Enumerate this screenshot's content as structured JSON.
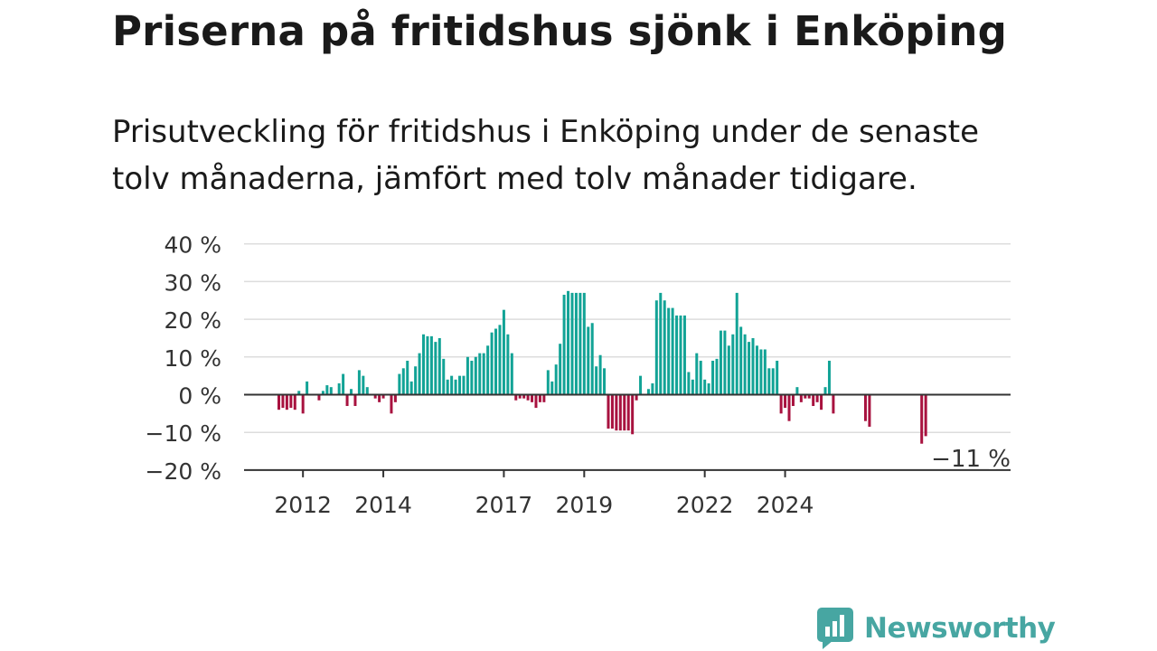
{
  "title": "Priserna på fritidshus sjönk i Enköping",
  "subtitle": "Prisutveckling för fritidshus i Enköping under de senaste tolv månaderna, jämfört med tolv månader tidigare.",
  "brand": {
    "name": "Newsworthy",
    "icon": "newsworthy-logo-icon",
    "color": "#47a6a2"
  },
  "colors": {
    "positive": "#12a396",
    "negative": "#a8123f",
    "grid": "#dddddd",
    "axis": "#333333"
  },
  "chart_data": {
    "type": "bar",
    "ylim": [
      -20,
      40
    ],
    "y_ticks": [
      {
        "value": 40,
        "label": "40 %"
      },
      {
        "value": 30,
        "label": "30 %"
      },
      {
        "value": 20,
        "label": "20 %"
      },
      {
        "value": 10,
        "label": "10 %"
      },
      {
        "value": 0,
        "label": "0 %"
      },
      {
        "value": -10,
        "label": "−10 %"
      },
      {
        "value": -20,
        "label": "−20 %"
      }
    ],
    "x_ticks": [
      "2012",
      "2014",
      "2017",
      "2019",
      "2022",
      "2024"
    ],
    "x_tick_index": [
      6,
      26,
      56,
      76,
      106,
      126
    ],
    "grid": true,
    "last_value_label": "−11 %",
    "values": [
      -4,
      -3.5,
      -4,
      -3.5,
      -4,
      1,
      -5,
      3.5,
      0,
      0,
      -1.5,
      1,
      2.5,
      2,
      0,
      3,
      5.5,
      -3,
      1.5,
      -3,
      6.5,
      5,
      2,
      0,
      -1,
      -2,
      -1,
      0,
      -5,
      -2,
      5.5,
      7,
      9,
      3.5,
      7.5,
      11,
      16,
      15.5,
      15.5,
      14,
      15,
      9.5,
      4,
      5,
      4,
      5,
      5,
      10,
      9,
      10,
      11,
      11,
      13,
      16.5,
      17.5,
      18.5,
      22.5,
      16,
      11,
      -1.5,
      -1,
      -1,
      -1.5,
      -2,
      -3.5,
      -2,
      -2,
      6.5,
      3.5,
      8,
      13.5,
      26.5,
      27.5,
      27,
      27,
      27,
      27,
      18,
      19,
      7.5,
      10.5,
      7,
      -9,
      -9,
      -9.5,
      -9.5,
      -9.5,
      -9.5,
      -10.5,
      -1.5,
      5,
      0,
      1.5,
      3,
      25,
      27,
      25,
      23,
      23,
      21,
      21,
      21,
      6,
      4,
      11,
      9,
      4,
      3,
      9,
      9.5,
      17,
      17,
      13,
      16,
      27,
      18,
      16,
      14,
      15,
      13,
      12,
      12,
      7,
      7,
      9,
      -5,
      -3.5,
      -7,
      -3,
      2,
      -2,
      -1,
      -1,
      -3,
      -2,
      -4,
      2,
      9,
      -5,
      0,
      0,
      0,
      0,
      0,
      0,
      0,
      -7,
      -8.5,
      0,
      0,
      0,
      0,
      0,
      0,
      0,
      0,
      0,
      0,
      0,
      0,
      -13,
      -11
    ]
  }
}
